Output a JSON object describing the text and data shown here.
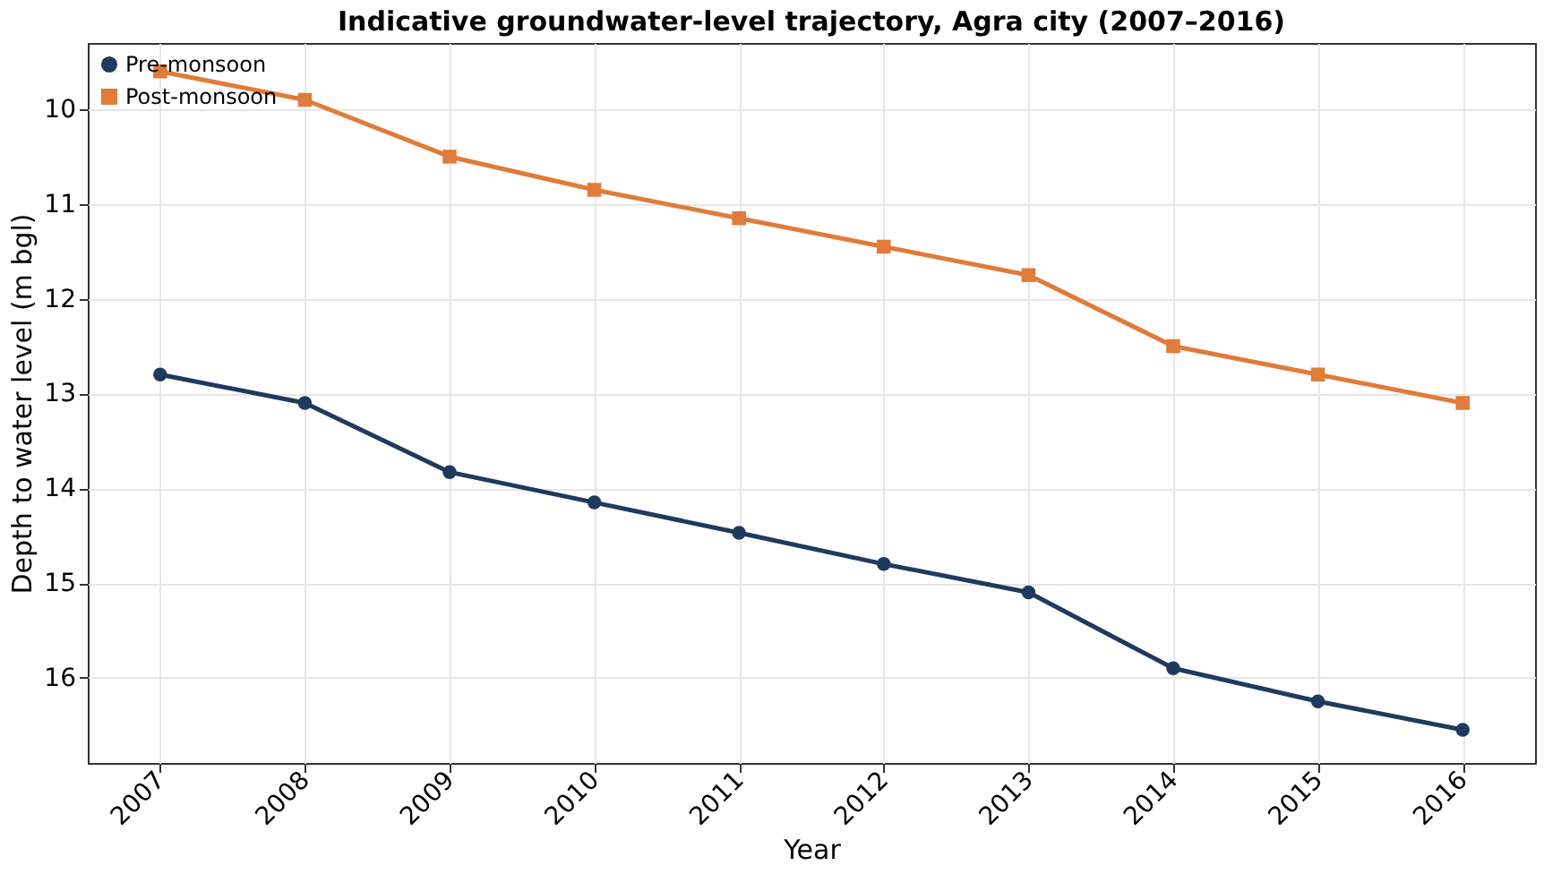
{
  "chart_data": {
    "type": "line",
    "title": "Indicative groundwater-level trajectory, Agra city (2007–2016)",
    "xlabel": "Year",
    "ylabel": "Depth to water level (m bgl)",
    "categories": [
      "2007",
      "2008",
      "2009",
      "2010",
      "2011",
      "2012",
      "2013",
      "2014",
      "2015",
      "2016"
    ],
    "series": [
      {
        "name": "Pre-monsoon",
        "color": "#1f3a5f",
        "marker": "circle",
        "values": [
          12.8,
          13.1,
          13.83,
          14.15,
          14.47,
          14.8,
          15.1,
          15.9,
          16.25,
          16.55
        ]
      },
      {
        "name": "Post-monsoon",
        "color": "#e07b39",
        "marker": "square",
        "values": [
          9.6,
          9.9,
          10.5,
          10.85,
          11.15,
          11.45,
          11.75,
          12.5,
          12.8,
          13.1
        ]
      }
    ],
    "ylim": [
      16.9,
      9.3
    ],
    "yticks": [
      10,
      11,
      12,
      13,
      14,
      15,
      16
    ],
    "grid": true,
    "legend": "top left",
    "line_style": "solid"
  }
}
